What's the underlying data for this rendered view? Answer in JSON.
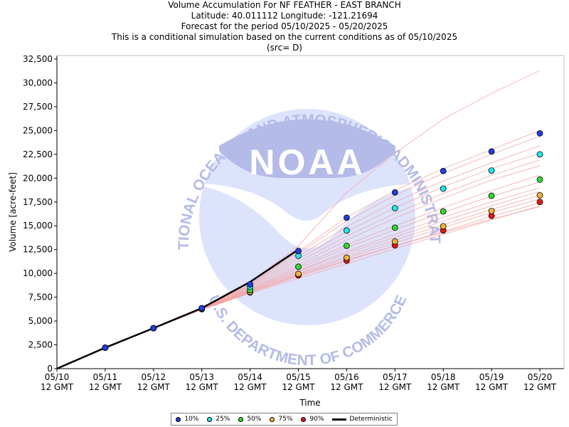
{
  "titles": [
    "Volume Accumulation For NF FEATHER - EAST BRANCH",
    "Latitude: 40.011112 Longitude: -121.21694",
    "Forecast for the period 05/10/2025 - 05/20/2025",
    "This is a conditional simulation based on the current conditions as of 05/10/2025",
    "(src= D)"
  ],
  "watermark": {
    "logo_text": "NOAA",
    "ring_top": "NATIONAL OCEANIC AND ATMOSPHERIC ADMINISTRATION",
    "ring_bottom": "U.S. DEPARTMENT OF COMMERCE",
    "colors": {
      "dark": "#b5bbe8",
      "light": "#dde3fb"
    }
  },
  "chart_data": {
    "type": "line",
    "xlabel": "Time",
    "ylabel": "Volume [acre-feet]",
    "categories": [
      "05/10\n12 GMT",
      "05/11\n12 GMT",
      "05/12\n12 GMT",
      "05/13\n12 GMT",
      "05/14\n12 GMT",
      "05/15\n12 GMT",
      "05/16\n12 GMT",
      "05/17\n12 GMT",
      "05/18\n12 GMT",
      "05/19\n12 GMT",
      "05/20\n12 GMT"
    ],
    "ylim": [
      0,
      32500
    ],
    "yticks": [
      0,
      2500,
      5000,
      7500,
      10000,
      12500,
      15000,
      17500,
      20000,
      22500,
      25000,
      27500,
      30000,
      32500
    ],
    "ytick_labels": [
      "0",
      "2,500",
      "5,000",
      "7,500",
      "10,000",
      "12,500",
      "15,000",
      "17,500",
      "20,000",
      "22,500",
      "25,000",
      "27,500",
      "30,000",
      "32,500"
    ],
    "grid": false,
    "legend_position": "bottom",
    "deterministic": {
      "name": "Deterministic",
      "color": "#000000",
      "x": [
        0,
        1,
        2,
        3,
        4,
        5
      ],
      "y": [
        0,
        2200,
        4250,
        6350,
        9100,
        12500
      ]
    },
    "exceedance_series": [
      {
        "name": "10%",
        "color": "#1f3fdf",
        "x": [
          1,
          2,
          3,
          4,
          5,
          6,
          7,
          8,
          9,
          10
        ],
        "y": [
          2200,
          4250,
          6350,
          8850,
          12350,
          15850,
          18500,
          20750,
          22800,
          24700
        ]
      },
      {
        "name": "25%",
        "color": "#22e8ee",
        "x": [
          1,
          2,
          3,
          4,
          5,
          6,
          7,
          8,
          9,
          10
        ],
        "y": [
          2200,
          4250,
          6350,
          8600,
          11850,
          14500,
          16850,
          18900,
          20800,
          22500
        ]
      },
      {
        "name": "50%",
        "color": "#2fdb2f",
        "x": [
          1,
          2,
          3,
          4,
          5,
          6,
          7,
          8,
          9,
          10
        ],
        "y": [
          2200,
          4250,
          6300,
          8250,
          10700,
          12900,
          14800,
          16500,
          18150,
          19850
        ]
      },
      {
        "name": "75%",
        "color": "#f0b43a",
        "x": [
          1,
          2,
          3,
          4,
          5,
          6,
          7,
          8,
          9,
          10
        ],
        "y": [
          2200,
          4250,
          6250,
          8050,
          9950,
          11650,
          13350,
          14950,
          16550,
          18200
        ]
      },
      {
        "name": "90%",
        "color": "#e8161b",
        "x": [
          1,
          2,
          3,
          4,
          5,
          6,
          7,
          8,
          9,
          10
        ],
        "y": [
          2200,
          4250,
          6250,
          8000,
          9800,
          11350,
          12950,
          14500,
          16050,
          17500
        ]
      }
    ],
    "traces": {
      "color": "#f4a0a0",
      "x": [
        0,
        1,
        2,
        3,
        4,
        5,
        6,
        7,
        8,
        9,
        10
      ],
      "members": [
        [
          0,
          2200,
          4250,
          6300,
          9000,
          12900,
          18500,
          22600,
          26200,
          28900,
          31300
        ],
        [
          0,
          2200,
          4250,
          6350,
          8850,
          12300,
          15900,
          18700,
          21000,
          23000,
          25000
        ],
        [
          0,
          2200,
          4250,
          6350,
          8800,
          12100,
          15500,
          18200,
          20500,
          22500,
          24400
        ],
        [
          0,
          2200,
          4250,
          6300,
          8700,
          11800,
          14900,
          17500,
          19700,
          21600,
          23400
        ],
        [
          0,
          2200,
          4250,
          6300,
          8600,
          11500,
          14400,
          16900,
          19100,
          21000,
          22600
        ],
        [
          0,
          2200,
          4250,
          6300,
          8500,
          11200,
          13900,
          16300,
          18400,
          20300,
          21900
        ],
        [
          0,
          2200,
          4250,
          6300,
          8400,
          10900,
          13500,
          15800,
          17900,
          19800,
          21300
        ],
        [
          0,
          2200,
          4250,
          6300,
          8300,
          10700,
          13000,
          15000,
          16900,
          18700,
          20300
        ],
        [
          0,
          2200,
          4250,
          6300,
          8300,
          10500,
          12700,
          14600,
          16400,
          18100,
          19600
        ],
        [
          0,
          2200,
          4250,
          6250,
          8200,
          10300,
          12300,
          14100,
          15900,
          17500,
          19000
        ],
        [
          0,
          2200,
          4250,
          6250,
          8200,
          10200,
          12100,
          13800,
          15500,
          17100,
          18600
        ],
        [
          0,
          2200,
          4250,
          6250,
          8100,
          10000,
          11800,
          13500,
          15100,
          16700,
          18200
        ],
        [
          0,
          2200,
          4250,
          6250,
          8100,
          9900,
          11600,
          13200,
          14800,
          16400,
          17800
        ],
        [
          0,
          2200,
          4250,
          6250,
          8000,
          9700,
          11300,
          12900,
          14400,
          16000,
          17400
        ],
        [
          0,
          2200,
          4250,
          6200,
          7900,
          9500,
          11000,
          12600,
          14100,
          15600,
          17100
        ],
        [
          0,
          2200,
          4250,
          6200,
          8000,
          9800,
          11400,
          12900,
          14300,
          15700,
          17000
        ]
      ]
    }
  },
  "legend": {
    "items": [
      {
        "label": "10%",
        "color": "#1f3fdf"
      },
      {
        "label": "25%",
        "color": "#22e8ee"
      },
      {
        "label": "50%",
        "color": "#2fdb2f"
      },
      {
        "label": "75%",
        "color": "#f0b43a"
      },
      {
        "label": "90%",
        "color": "#e8161b"
      }
    ],
    "deterministic_label": "Deterministic"
  }
}
